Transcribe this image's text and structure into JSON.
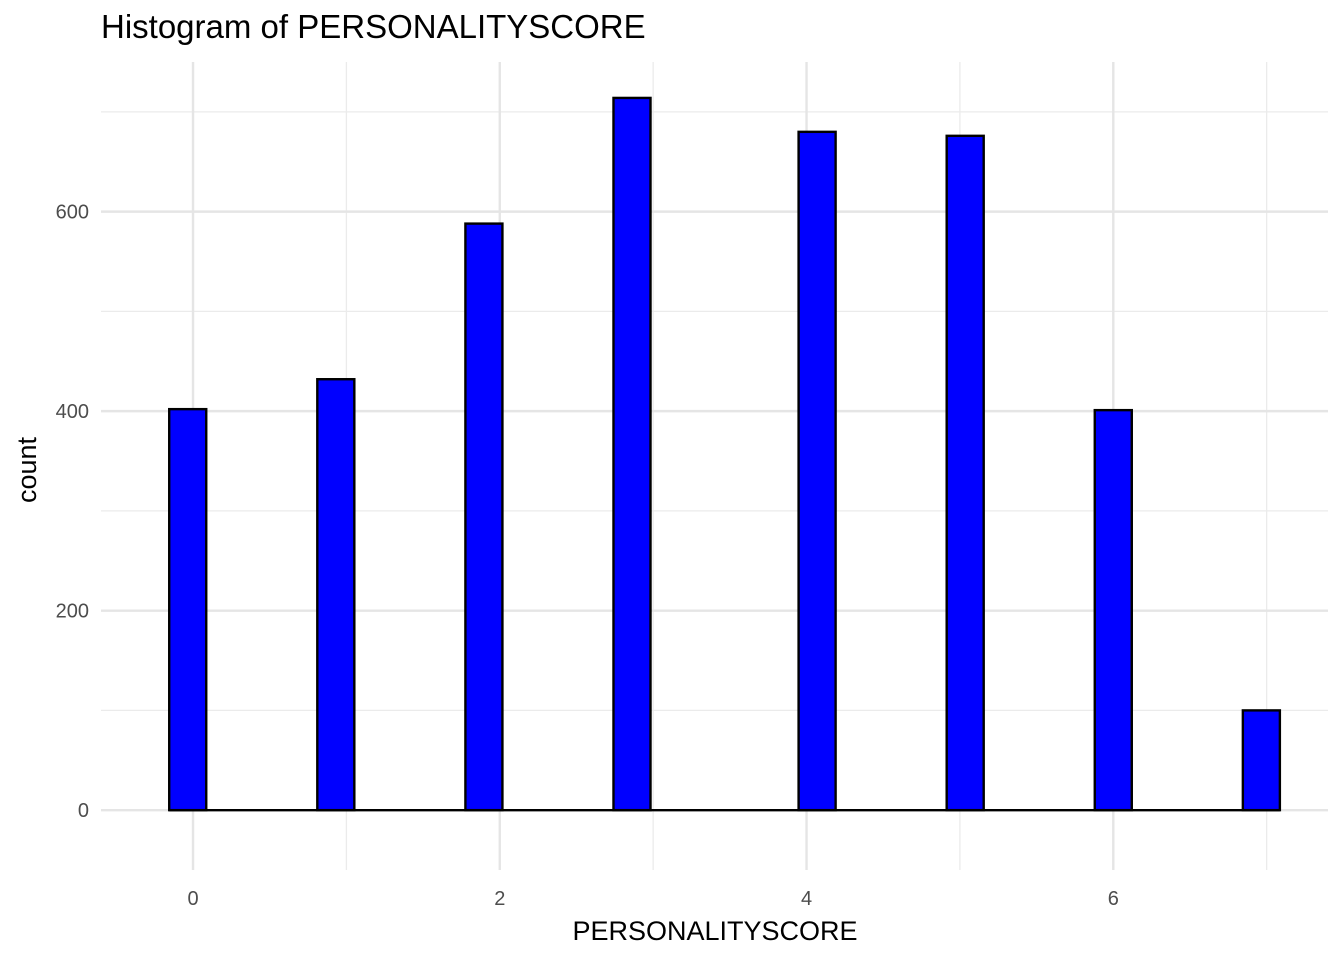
{
  "chart_data": {
    "type": "bar",
    "title": "Histogram of PERSONALITYSCORE",
    "xlabel": "PERSONALITYSCORE",
    "ylabel": "count",
    "xlim": [
      -0.6,
      7.4
    ],
    "ylim": [
      -60,
      750
    ],
    "x_ticks": [
      0,
      2,
      4,
      6
    ],
    "x_tick_labels": [
      "0",
      "2",
      "4",
      "6"
    ],
    "y_ticks": [
      0,
      200,
      400,
      600
    ],
    "y_tick_labels": [
      "0",
      "200",
      "400",
      "600"
    ],
    "grid": true,
    "bin_width": 0.2414,
    "x": [
      -0.0345,
      0.931,
      1.8966,
      2.8621,
      4.069,
      5.0345,
      6.0,
      6.9655
    ],
    "values": [
      402,
      432,
      588,
      714,
      680,
      676,
      401,
      100
    ],
    "fill_color": "#0000ff",
    "outline_color": "#000000"
  }
}
